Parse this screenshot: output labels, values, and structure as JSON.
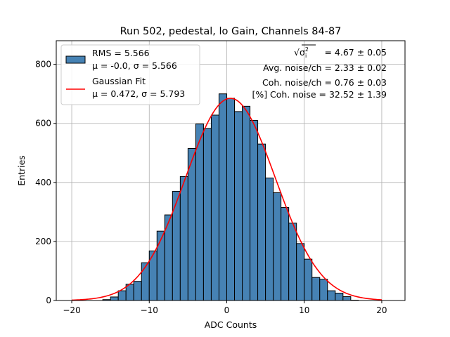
{
  "chart_data": {
    "type": "bar",
    "title": "Run 502, pedestal, lo Gain, Channels 84-87",
    "xlabel": "ADC Counts",
    "ylabel": "Entries",
    "xlim": [
      -22,
      23
    ],
    "ylim": [
      0,
      880
    ],
    "xticks": [
      -20,
      -10,
      0,
      10,
      20
    ],
    "xtick_labels": [
      "−20",
      "−10",
      "0",
      "10",
      "20"
    ],
    "yticks": [
      0,
      200,
      400,
      600,
      800
    ],
    "ytick_labels": [
      "0",
      "200",
      "400",
      "600",
      "800"
    ],
    "grid": true,
    "bin_width": 1,
    "bin_edges_start": -16,
    "counts": [
      3,
      12,
      33,
      55,
      65,
      128,
      168,
      235,
      290,
      370,
      420,
      515,
      598,
      583,
      628,
      700,
      685,
      640,
      658,
      610,
      530,
      415,
      365,
      315,
      262,
      193,
      140,
      78,
      72,
      33,
      25,
      13,
      1,
      0,
      0,
      0,
      0
    ],
    "histogram_color": "#4682b4",
    "fit": {
      "mu": 0.472,
      "sigma": 5.793,
      "amplitude": 685,
      "color": "#ff0000"
    },
    "legend": {
      "position": "upper-left",
      "entries": [
        {
          "label_line1": "RMS = 5.566",
          "label_line2": "μ = -0.0, σ = 5.566"
        },
        {
          "label_line1": "Gaussian Fit",
          "label_line2": "μ = 0.472, σ = 5.793"
        }
      ]
    },
    "annotations": [
      {
        "lhs": "√σ",
        "rhs": " = 4.67 ± 0.05"
      },
      {
        "text": "Avg. noise/ch = 2.33 ± 0.02"
      },
      {
        "text": "Coh. noise/ch = 0.76 ± 0.03"
      },
      {
        "text": "[%] Coh. noise = 32.52 ± 1.39"
      }
    ]
  }
}
